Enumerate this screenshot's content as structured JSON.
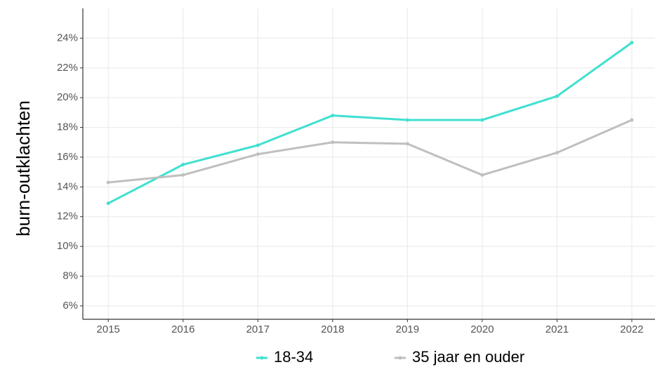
{
  "chart_data": {
    "type": "line",
    "y_label": "burn-outklachten",
    "x": [
      2015,
      2016,
      2017,
      2018,
      2019,
      2020,
      2021,
      2022
    ],
    "series": [
      {
        "name": "18-34",
        "color": "#40e0d0",
        "values": [
          12.9,
          15.5,
          16.8,
          18.8,
          18.5,
          18.5,
          20.1,
          23.7
        ]
      },
      {
        "name": "35 jaar en ouder",
        "color": "#bfbfbf",
        "values": [
          14.3,
          14.8,
          16.2,
          17.0,
          16.9,
          14.8,
          16.3,
          18.5
        ]
      }
    ],
    "xlim": [
      2014.66,
      2022.31
    ],
    "xticks": [
      2015,
      2016,
      2017,
      2018,
      2019,
      2020,
      2021,
      2022
    ],
    "ylim": [
      5.1,
      26
    ],
    "yticks": [
      {
        "value": 6,
        "label": "6%"
      },
      {
        "value": 8,
        "label": "8%"
      },
      {
        "value": 10,
        "label": "10%"
      },
      {
        "value": 12,
        "label": "12%"
      },
      {
        "value": 14,
        "label": "14%"
      },
      {
        "value": 16,
        "label": "16%"
      },
      {
        "value": 18,
        "label": "18%"
      },
      {
        "value": 20,
        "label": "20%"
      },
      {
        "value": 22,
        "label": "22%"
      },
      {
        "value": 24,
        "label": "24%"
      }
    ],
    "grid": true,
    "legend": "bottom"
  }
}
